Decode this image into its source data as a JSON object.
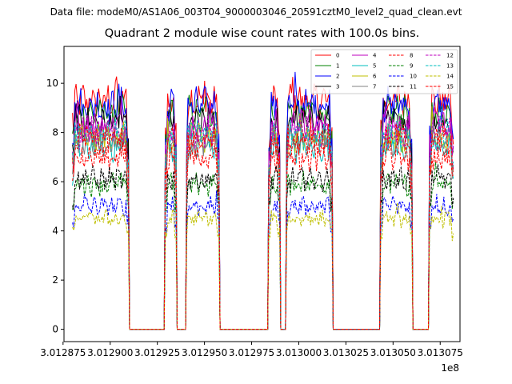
{
  "suptitle": "Data file: modeM0/AS1A06_003T04_9000003046_20591cztM0_level2_quad_clean.evt",
  "title": "Quadrant 2 module wise count rates with 100.0s bins.",
  "x_offset_label": "1e8",
  "chart_data": {
    "type": "line",
    "title": "Quadrant 2 module wise count rates with 100.0s bins.",
    "xlabel": "",
    "ylabel": "",
    "x_offset": "1e8",
    "xlim": [
      3.0128755,
      3.0130855
    ],
    "ylim": [
      -0.5,
      11.5
    ],
    "xticks": [
      3.012875,
      3.0129,
      3.012925,
      3.01295,
      3.012975,
      3.013,
      3.013025,
      3.01305,
      3.013075
    ],
    "xtick_labels": [
      "3.012875",
      "3.012900",
      "3.012925",
      "3.012950",
      "3.012975",
      "3.013000",
      "3.013025",
      "3.013050",
      "3.013075"
    ],
    "yticks": [
      0,
      2,
      4,
      6,
      8,
      10
    ],
    "ytick_labels": [
      "0",
      "2",
      "4",
      "6",
      "8",
      "10"
    ],
    "legend_position": "upper-right",
    "segments": [
      {
        "x_start": 3.01288,
        "x_end": 3.01291
      },
      {
        "x_start": 3.012929,
        "x_end": 3.012935
      },
      {
        "x_start": 3.01294,
        "x_end": 3.012958
      },
      {
        "x_start": 3.012984,
        "x_end": 3.01299
      },
      {
        "x_start": 3.012993,
        "x_end": 3.013018
      },
      {
        "x_start": 3.013043,
        "x_end": 3.01306
      },
      {
        "x_start": 3.013069,
        "x_end": 3.013082
      }
    ],
    "series": [
      {
        "name": "0",
        "color": "#ff0000",
        "dash": "solid",
        "level": 9.3
      },
      {
        "name": "1",
        "color": "#008000",
        "dash": "solid",
        "level": 8.8
      },
      {
        "name": "2",
        "color": "#0000ff",
        "dash": "solid",
        "level": 9.1
      },
      {
        "name": "3",
        "color": "#000000",
        "dash": "solid",
        "level": 8.4
      },
      {
        "name": "4",
        "color": "#bf00bf",
        "dash": "solid",
        "level": 8.3
      },
      {
        "name": "5",
        "color": "#00bfbf",
        "dash": "solid",
        "level": 7.4
      },
      {
        "name": "6",
        "color": "#bfbf00",
        "dash": "solid",
        "level": 7.8
      },
      {
        "name": "7",
        "color": "#808080",
        "dash": "solid",
        "level": 7.6
      },
      {
        "name": "8",
        "color": "#ff0000",
        "dash": "dashed",
        "level": 7.0
      },
      {
        "name": "9",
        "color": "#008000",
        "dash": "dashed",
        "level": 5.9
      },
      {
        "name": "10",
        "color": "#0000ff",
        "dash": "dashed",
        "level": 5.0
      },
      {
        "name": "11",
        "color": "#000000",
        "dash": "dashed",
        "level": 6.1
      },
      {
        "name": "12",
        "color": "#bf00bf",
        "dash": "dashed",
        "level": 8.0
      },
      {
        "name": "13",
        "color": "#00bfbf",
        "dash": "dashed",
        "level": 7.9
      },
      {
        "name": "14",
        "color": "#bfbf00",
        "dash": "dashed",
        "level": 4.5
      },
      {
        "name": "15",
        "color": "#ff0000",
        "dash": "dashed",
        "level": 7.7
      }
    ]
  }
}
